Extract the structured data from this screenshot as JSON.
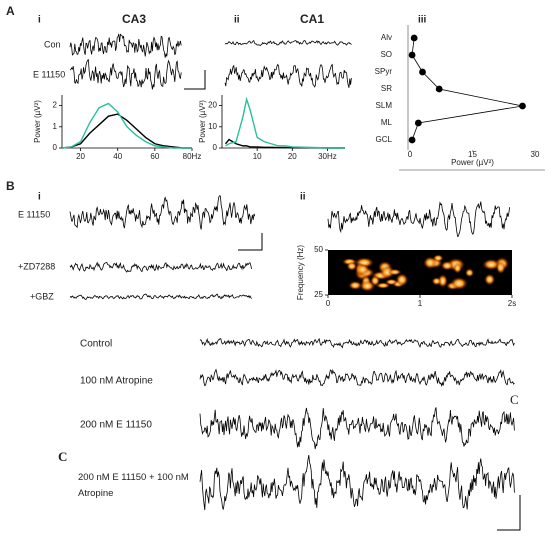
{
  "labels": {
    "panel_a": "A",
    "a_i": "i",
    "a_ii": "ii",
    "a_iii": "iii",
    "con": "Con",
    "a_e11150": "E 11150",
    "panel_b": "B",
    "b_i": "i",
    "b_ii": "ii",
    "b_e11150": "E 11150",
    "zd7288": "+ZD7288",
    "gbz": "+GBZ",
    "control": "Control",
    "atropine": "100 nM Atropine",
    "e11150_200": "200 nM E 11150",
    "combo": "200 nM E 11150 + 100 nM Atropine",
    "c_right": "C",
    "c_left": "C"
  },
  "chart_data": [
    {
      "type": "line",
      "title": "CA3",
      "ylabel": "Power (µV²)",
      "x": [
        10,
        15,
        20,
        25,
        30,
        35,
        40,
        45,
        50,
        55,
        60,
        65,
        70,
        75,
        80
      ],
      "series": [
        {
          "color": "#000000",
          "values": [
            0,
            0.05,
            0.2,
            0.7,
            1.1,
            1.5,
            1.6,
            1.3,
            0.9,
            0.5,
            0.2,
            0.1,
            0.05,
            0,
            0
          ]
        },
        {
          "color": "#2bbf9c",
          "values": [
            0,
            0.05,
            0.3,
            1.2,
            1.9,
            2.1,
            1.7,
            1.0,
            0.6,
            0.3,
            0.1,
            0.05,
            0,
            0,
            0
          ]
        }
      ],
      "xlim": [
        10,
        80
      ],
      "ylim": [
        0,
        2.5
      ],
      "xticks": [
        20,
        40,
        60,
        {
          "value": 80,
          "label": "80Hz"
        }
      ],
      "yticks": [
        0,
        1,
        2
      ]
    },
    {
      "type": "line",
      "title": "CA1",
      "ylabel": "Power (µV²)",
      "x": [
        1,
        2,
        4,
        6,
        7,
        8,
        10,
        12,
        14,
        16,
        18,
        20,
        25,
        30,
        35
      ],
      "series": [
        {
          "color": "#000000",
          "values": [
            2,
            4,
            2,
            1,
            1,
            0.5,
            0.5,
            0.3,
            0.3,
            0.2,
            0.2,
            0.1,
            0.1,
            0,
            0
          ]
        },
        {
          "color": "#2bbf9c",
          "values": [
            1,
            2,
            3,
            15,
            23,
            18,
            5,
            3,
            2,
            1,
            1,
            0.5,
            0.3,
            0,
            0
          ]
        }
      ],
      "xlim": [
        0,
        35
      ],
      "ylim": [
        0,
        25
      ],
      "xticks": [
        10,
        20,
        {
          "value": 30,
          "label": "30Hz"
        }
      ],
      "yticks": [
        0,
        10,
        20
      ]
    },
    {
      "type": "line",
      "orientation": "horizontal",
      "xlabel": "Power (µV²)",
      "categories": [
        "Alv",
        "SO",
        "SPyr",
        "SR",
        "SLM",
        "ML",
        "GCL"
      ],
      "values": [
        1,
        0.5,
        3,
        7,
        27,
        2,
        0.5
      ],
      "color": "#000000",
      "xlim": [
        0,
        30
      ],
      "xticks": [
        0,
        15,
        30
      ]
    },
    {
      "type": "heatmap",
      "ylabel": "Frequency (Hz)",
      "xlim": [
        0,
        2
      ],
      "ylim": [
        25,
        50
      ],
      "xticks": [
        0,
        1,
        {
          "value": 2,
          "label": "2s"
        }
      ],
      "yticks": [
        25,
        50
      ]
    }
  ]
}
